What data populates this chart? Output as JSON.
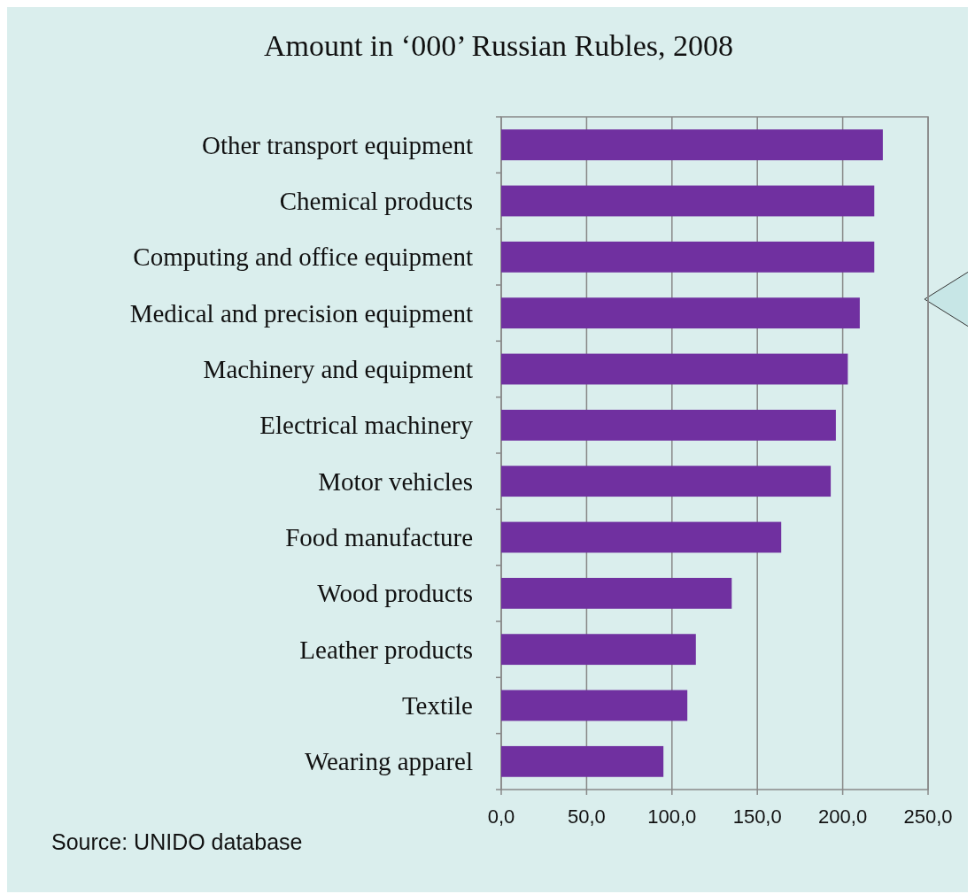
{
  "chart_data": {
    "type": "bar",
    "orientation": "horizontal",
    "title": "Amount in  ‘000’ Russian Rubles, 2008",
    "categories": [
      "Other transport equipment",
      "Chemical products",
      "Computing and office equipment",
      "Medical and precision equipment",
      "Machinery and equipment",
      "Electrical machinery",
      "Motor vehicles",
      "Food manufacture",
      "Wood products",
      "Leather products",
      "Textile",
      "Wearing apparel"
    ],
    "values": [
      223.5,
      218.5,
      218.5,
      210,
      203,
      196,
      193,
      164,
      135,
      114,
      109,
      95
    ],
    "color": "#7030a0",
    "xlim": [
      0,
      250
    ],
    "xticks": [
      {
        "value": 0,
        "label": "0,0"
      },
      {
        "value": 50,
        "label": "50,0"
      },
      {
        "value": 100,
        "label": "100,0"
      },
      {
        "value": 150,
        "label": "150,0"
      },
      {
        "value": 200,
        "label": "200,0"
      },
      {
        "value": 250,
        "label": "250,0"
      }
    ],
    "grid": "x",
    "annotations": [
      "Source: UNIDO database"
    ]
  }
}
